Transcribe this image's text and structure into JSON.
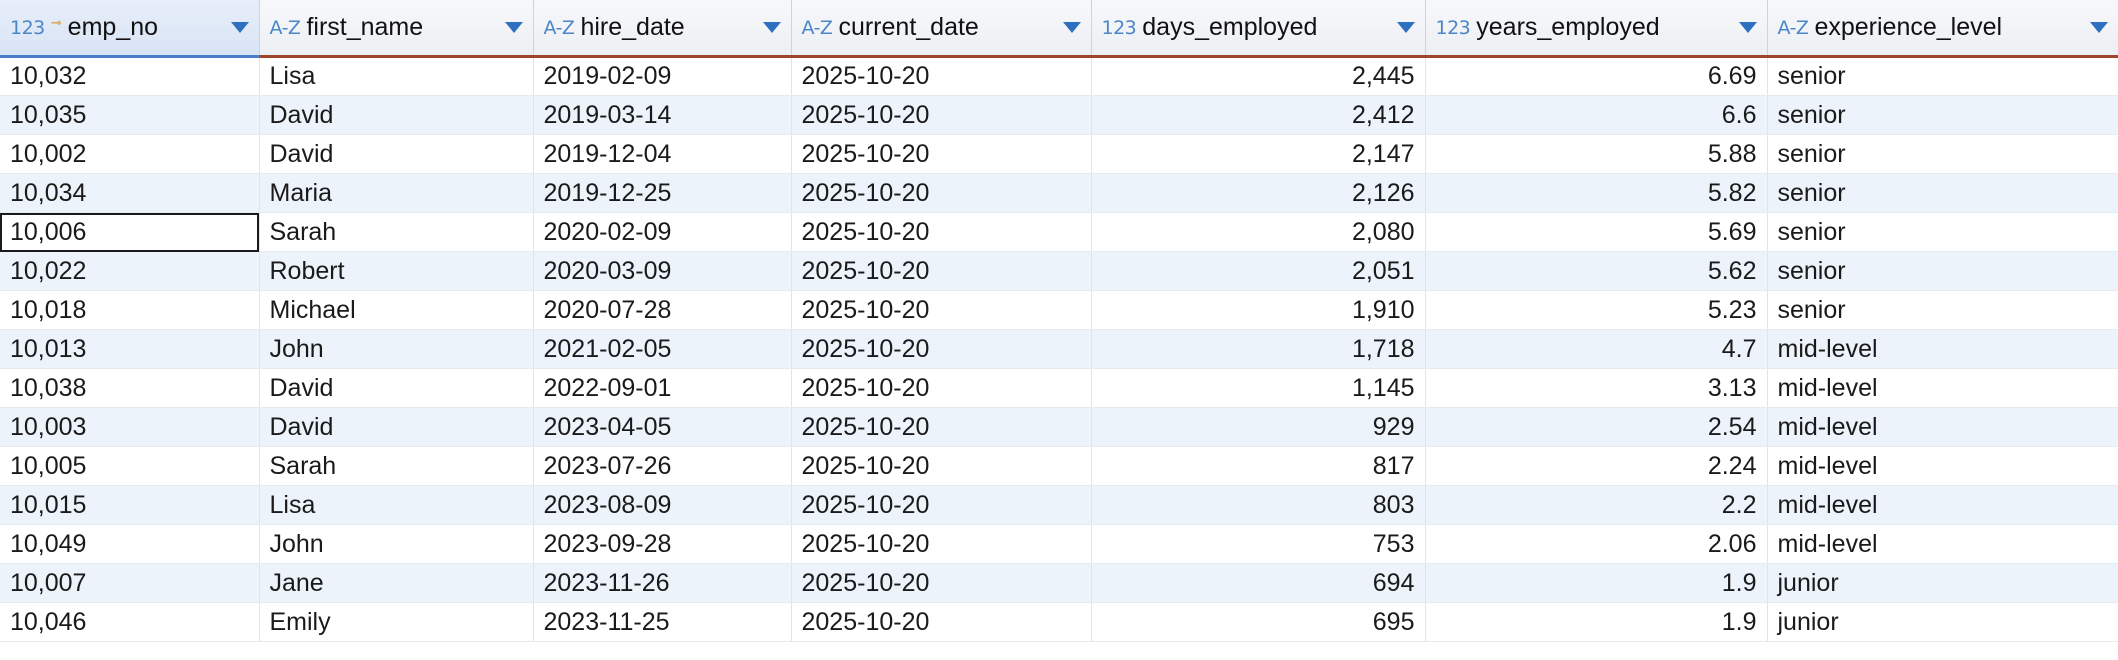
{
  "columns": [
    {
      "name": "emp_no",
      "type_icon": "123",
      "key": true,
      "icon": "numeric-type-icon"
    },
    {
      "name": "first_name",
      "type_icon": "A-Z",
      "key": false,
      "icon": "text-type-icon"
    },
    {
      "name": "hire_date",
      "type_icon": "A-Z",
      "key": false,
      "icon": "text-type-icon"
    },
    {
      "name": "current_date",
      "type_icon": "A-Z",
      "key": false,
      "icon": "text-type-icon"
    },
    {
      "name": "days_employed",
      "type_icon": "123",
      "key": false,
      "icon": "numeric-type-icon"
    },
    {
      "name": "years_employed",
      "type_icon": "123",
      "key": false,
      "icon": "numeric-type-icon"
    },
    {
      "name": "experience_level",
      "type_icon": "A-Z",
      "key": false,
      "icon": "text-type-icon"
    }
  ],
  "rows": [
    [
      "10,032",
      "Lisa",
      "2019-02-09",
      "2025-10-20",
      "2,445",
      "6.69",
      "senior"
    ],
    [
      "10,035",
      "David",
      "2019-03-14",
      "2025-10-20",
      "2,412",
      "6.6",
      "senior"
    ],
    [
      "10,002",
      "David",
      "2019-12-04",
      "2025-10-20",
      "2,147",
      "5.88",
      "senior"
    ],
    [
      "10,034",
      "Maria",
      "2019-12-25",
      "2025-10-20",
      "2,126",
      "5.82",
      "senior"
    ],
    [
      "10,006",
      "Sarah",
      "2020-02-09",
      "2025-10-20",
      "2,080",
      "5.69",
      "senior"
    ],
    [
      "10,022",
      "Robert",
      "2020-03-09",
      "2025-10-20",
      "2,051",
      "5.62",
      "senior"
    ],
    [
      "10,018",
      "Michael",
      "2020-07-28",
      "2025-10-20",
      "1,910",
      "5.23",
      "senior"
    ],
    [
      "10,013",
      "John",
      "2021-02-05",
      "2025-10-20",
      "1,718",
      "4.7",
      "mid-level"
    ],
    [
      "10,038",
      "David",
      "2022-09-01",
      "2025-10-20",
      "1,145",
      "3.13",
      "mid-level"
    ],
    [
      "10,003",
      "David",
      "2023-04-05",
      "2025-10-20",
      "929",
      "2.54",
      "mid-level"
    ],
    [
      "10,005",
      "Sarah",
      "2023-07-26",
      "2025-10-20",
      "817",
      "2.24",
      "mid-level"
    ],
    [
      "10,015",
      "Lisa",
      "2023-08-09",
      "2025-10-20",
      "803",
      "2.2",
      "mid-level"
    ],
    [
      "10,049",
      "John",
      "2023-09-28",
      "2025-10-20",
      "753",
      "2.06",
      "mid-level"
    ],
    [
      "10,007",
      "Jane",
      "2023-11-26",
      "2025-10-20",
      "694",
      "1.9",
      "junior"
    ],
    [
      "10,046",
      "Emily",
      "2023-11-25",
      "2025-10-20",
      "695",
      "1.9",
      "junior"
    ]
  ],
  "numeric_columns": [
    0,
    4,
    5
  ],
  "right_aligned_columns": [
    4,
    5
  ],
  "selected_cell": {
    "row": 4,
    "col": 0
  },
  "colors": {
    "header_bg": "#eceff3",
    "header_underline": "#a0442c",
    "selected_header_underline": "#4a7cc7",
    "type_icon": "#4a86c8",
    "key_icon": "#e08a24",
    "sort_arrow": "#2f6fc0",
    "alt_row_bg": "#edf3fb"
  }
}
